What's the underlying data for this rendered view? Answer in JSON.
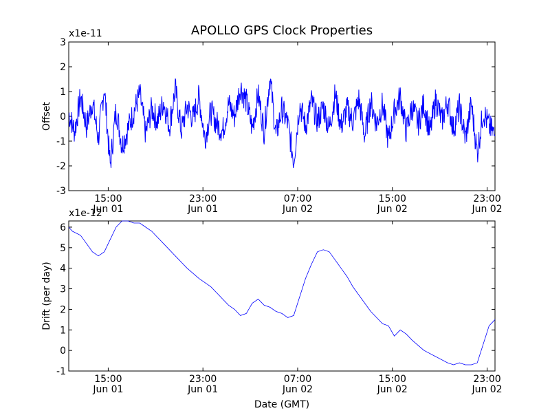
{
  "title": "APOLLO GPS Clock Properties",
  "line_color": "#0000ff",
  "chart_data": [
    {
      "type": "line",
      "ylabel": "Offset",
      "xlabel": "",
      "multiplier": "x1e-11",
      "ylim": [
        -3,
        3
      ],
      "yticks": [
        "-3",
        "-2",
        "-1",
        "0",
        "1",
        "2",
        "3"
      ],
      "xlim": [
        "Jun 01 11:40",
        "Jun 02 23:40"
      ],
      "xticks": [
        {
          "time": "15:00",
          "date": "Jun 01"
        },
        {
          "time": "23:00",
          "date": "Jun 01"
        },
        {
          "time": "07:00",
          "date": "Jun 02"
        },
        {
          "time": "15:00",
          "date": "Jun 02"
        },
        {
          "time": "23:00",
          "date": "Jun 02"
        }
      ],
      "series": [
        {
          "x_hours": [
            0.0,
            0.5,
            1.0,
            1.5,
            2.0,
            2.5,
            3.0,
            3.5,
            4.0,
            4.5,
            5.0,
            5.5,
            6.0,
            6.5,
            7.0,
            7.5,
            8.0,
            8.5,
            9.0,
            9.5,
            10.0,
            10.5,
            11.0,
            11.5,
            12.0,
            12.5,
            13.0,
            13.5,
            14.0,
            14.5,
            15.0,
            15.5,
            16.0,
            16.5,
            17.0,
            17.5,
            18.0,
            18.5,
            19.0,
            19.5,
            20.0,
            20.5,
            21.0,
            21.5,
            22.0,
            22.5,
            23.0,
            23.5,
            24.0,
            24.5,
            25.0,
            25.5,
            26.0,
            26.5,
            27.0,
            27.5,
            28.0,
            28.5,
            29.0,
            29.5,
            30.0,
            30.5,
            31.0,
            31.5,
            32.0,
            32.5,
            33.0,
            33.5,
            34.0,
            34.5,
            35.0,
            35.5,
            36.0
          ],
          "values": [
            0.1,
            -0.6,
            0.8,
            -0.4,
            0.6,
            -0.9,
            1.2,
            -2.0,
            0.3,
            -1.2,
            -0.5,
            0.2,
            0.9,
            -0.7,
            0.3,
            -0.2,
            0.6,
            -0.4,
            1.1,
            -0.6,
            0.4,
            -0.1,
            0.8,
            -0.9,
            0.2,
            -0.3,
            -0.6,
            0.5,
            0.0,
            1.2,
            0.6,
            -0.5,
            0.9,
            -0.6,
            1.6,
            -0.8,
            0.3,
            -0.3,
            -1.8,
            0.5,
            -0.4,
            0.6,
            -0.2,
            0.4,
            -0.5,
            0.9,
            -0.4,
            0.3,
            -0.2,
            0.7,
            -0.8,
            0.6,
            -0.3,
            0.5,
            -1.0,
            0.2,
            0.8,
            -0.6,
            0.4,
            -0.3,
            0.5,
            -0.7,
            0.7,
            -0.2,
            0.6,
            -0.5,
            0.4,
            -0.9,
            0.5,
            -1.5,
            0.2,
            -0.4,
            -0.8
          ]
        }
      ]
    },
    {
      "type": "line",
      "ylabel": "Drift (per day)",
      "xlabel": "Date (GMT)",
      "multiplier": "x1e-12",
      "ylim": [
        -1,
        6.3
      ],
      "yticks": [
        "-1",
        "0",
        "1",
        "2",
        "3",
        "4",
        "5",
        "6"
      ],
      "xlim": [
        "Jun 01 11:40",
        "Jun 02 23:40"
      ],
      "xticks": [
        {
          "time": "15:00",
          "date": "Jun 01"
        },
        {
          "time": "23:00",
          "date": "Jun 01"
        },
        {
          "time": "07:00",
          "date": "Jun 02"
        },
        {
          "time": "15:00",
          "date": "Jun 02"
        },
        {
          "time": "23:00",
          "date": "Jun 02"
        }
      ],
      "series": [
        {
          "x_hours": [
            0.0,
            0.3,
            1.0,
            1.5,
            2.0,
            2.5,
            3.0,
            3.5,
            4.0,
            4.5,
            5.0,
            5.5,
            6.0,
            6.5,
            7.0,
            7.5,
            8.0,
            9.0,
            10.0,
            11.0,
            12.0,
            12.5,
            13.0,
            13.5,
            14.0,
            14.5,
            15.0,
            15.5,
            16.0,
            16.5,
            17.0,
            17.5,
            18.0,
            18.5,
            19.0,
            19.5,
            20.0,
            20.5,
            21.0,
            21.5,
            22.0,
            22.5,
            23.0,
            23.5,
            24.0,
            24.5,
            25.0,
            25.5,
            26.0,
            26.5,
            27.0,
            27.5,
            28.0,
            28.5,
            29.0,
            30.0,
            31.0,
            32.0,
            32.5,
            33.0,
            33.5,
            34.0,
            34.5,
            35.0,
            35.5,
            36.0
          ],
          "values": [
            6.0,
            5.8,
            5.6,
            5.2,
            4.8,
            4.6,
            4.8,
            5.4,
            6.0,
            6.3,
            6.3,
            6.2,
            6.2,
            6.0,
            5.8,
            5.5,
            5.2,
            4.6,
            4.0,
            3.5,
            3.1,
            2.8,
            2.5,
            2.2,
            2.0,
            1.7,
            1.8,
            2.3,
            2.5,
            2.2,
            2.1,
            1.9,
            1.8,
            1.6,
            1.7,
            2.6,
            3.5,
            4.2,
            4.8,
            4.9,
            4.8,
            4.4,
            4.0,
            3.6,
            3.1,
            2.7,
            2.3,
            1.9,
            1.6,
            1.3,
            1.2,
            0.7,
            1.0,
            0.8,
            0.5,
            0.0,
            -0.3,
            -0.6,
            -0.7,
            -0.6,
            -0.7,
            -0.7,
            -0.6,
            0.3,
            1.2,
            1.5
          ]
        }
      ]
    }
  ]
}
